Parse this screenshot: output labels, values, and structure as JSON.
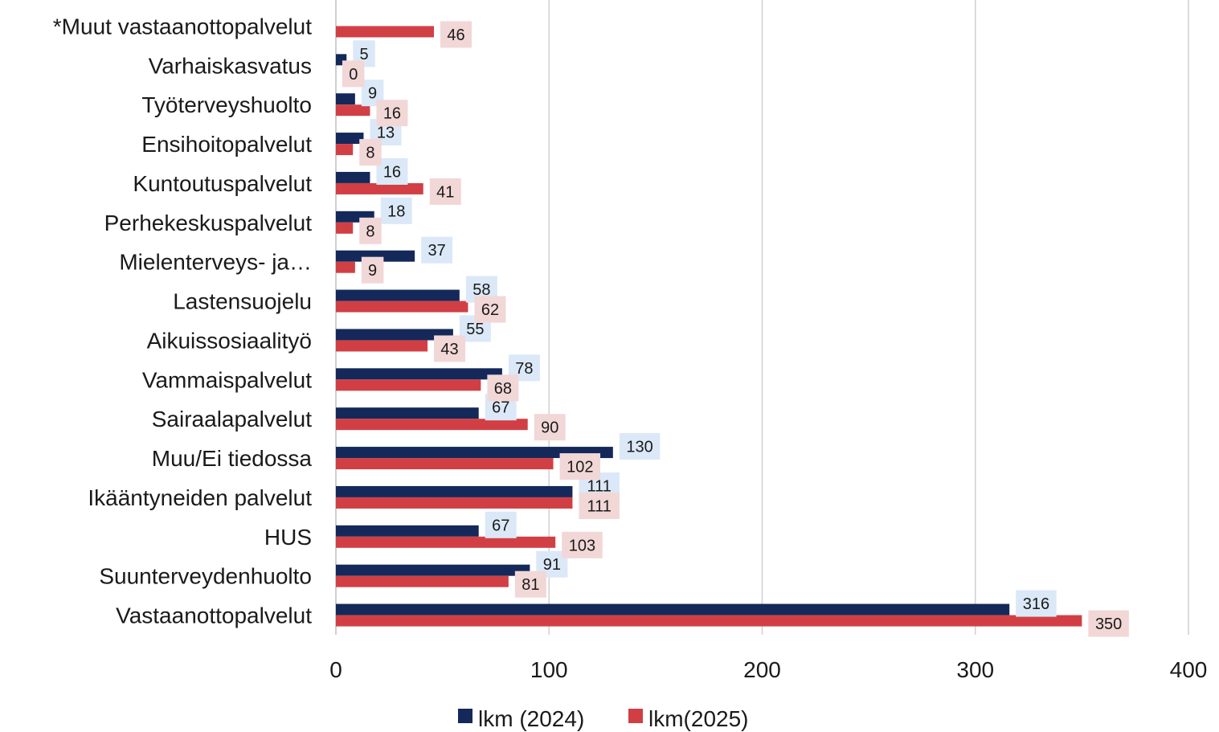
{
  "chart_data": {
    "type": "bar",
    "orientation": "horizontal",
    "title": "",
    "xlabel": "",
    "ylabel": "",
    "xlim": [
      0,
      400
    ],
    "x_ticks": [
      0,
      100,
      200,
      300,
      400
    ],
    "x_tick_labels": [
      "0",
      "100",
      "200",
      "300",
      "400"
    ],
    "grid": "vertical",
    "legend_position": "bottom",
    "categories": [
      "*Muut vastaanottopalvelut",
      "Varhaiskasvatus",
      "Työterveyshuolto",
      "Ensihoitopalvelut",
      "Kuntoutuspalvelut",
      "Perhekeskuspalvelut",
      "Mielenterveys- ja…",
      "Lastensuojelu",
      "Aikuissosiaalityö",
      "Vammaispalvelut",
      "Sairaalapalvelut",
      "Muu/Ei tiedossa",
      "Ikääntyneiden palvelut",
      "HUS",
      "Suunterveydenhuolto",
      "Vastaanottopalvelut"
    ],
    "series": [
      {
        "name": "lkm (2024)",
        "color": "#14295a",
        "label_bg": "#dbe8f7",
        "values": [
          null,
          5,
          9,
          13,
          16,
          18,
          37,
          58,
          55,
          78,
          67,
          130,
          111,
          67,
          91,
          316
        ],
        "labels": [
          "",
          "5",
          "9",
          "13",
          "16",
          "18",
          "37",
          "58",
          "55",
          "78",
          "67",
          "130",
          "111",
          "67",
          "91",
          "316"
        ]
      },
      {
        "name": "lkm(2025)",
        "color": "#d13f45",
        "label_bg": "#f2d7d7",
        "values": [
          46,
          0,
          16,
          8,
          41,
          8,
          9,
          62,
          43,
          68,
          90,
          102,
          111,
          103,
          81,
          350
        ],
        "labels": [
          "46",
          "0",
          "16",
          "8",
          "41",
          "8",
          "9",
          "62",
          "43",
          "68",
          "90",
          "102",
          "111",
          "103",
          "81",
          "350"
        ]
      }
    ]
  }
}
